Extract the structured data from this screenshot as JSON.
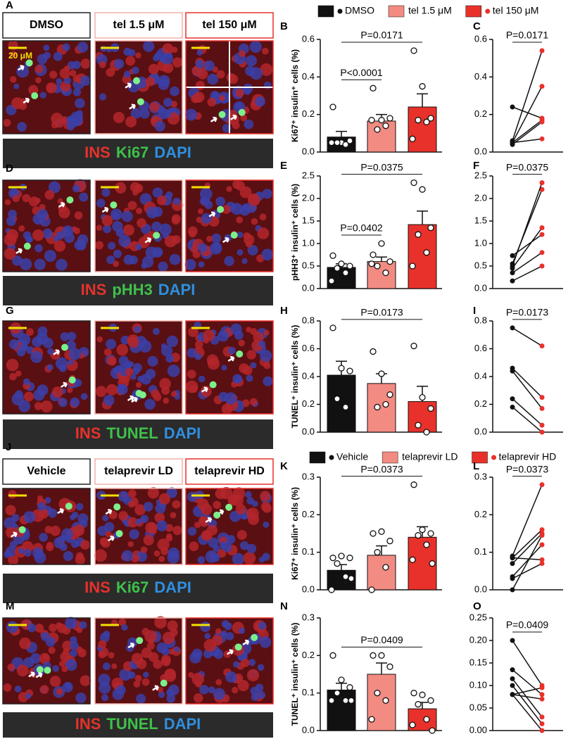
{
  "image_rows": [
    {
      "letter": "A",
      "headers": [
        "DMSO",
        "tel 1.5 μM",
        "tel 150 μM"
      ],
      "scale_label": "20 μM",
      "stains": [
        {
          "text": "INS",
          "color": "#e8312a"
        },
        {
          "text": "Ki67",
          "color": "#3fc14a"
        },
        {
          "text": "DAPI",
          "color": "#2f8fe0"
        }
      ]
    },
    {
      "letter": "D",
      "stains": [
        {
          "text": "INS",
          "color": "#e8312a"
        },
        {
          "text": "pHH3",
          "color": "#3fc14a"
        },
        {
          "text": "DAPI",
          "color": "#2f8fe0"
        }
      ]
    },
    {
      "letter": "G",
      "stains": [
        {
          "text": "INS",
          "color": "#e8312a"
        },
        {
          "text": "TUNEL",
          "color": "#3fc14a"
        },
        {
          "text": "DAPI",
          "color": "#2f8fe0"
        }
      ]
    },
    {
      "letter": "J",
      "headers": [
        "Vehicle",
        "telaprevir LD",
        "telaprevir HD"
      ],
      "stains": [
        {
          "text": "INS",
          "color": "#e8312a"
        },
        {
          "text": "Ki67",
          "color": "#3fc14a"
        },
        {
          "text": "DAPI",
          "color": "#2f8fe0"
        }
      ]
    },
    {
      "letter": "M",
      "stains": [
        {
          "text": "INS",
          "color": "#e8312a"
        },
        {
          "text": "TUNEL",
          "color": "#3fc14a"
        },
        {
          "text": "DAPI",
          "color": "#2f8fe0"
        }
      ]
    }
  ],
  "legends": [
    {
      "entries": [
        {
          "name": "DMSO",
          "color": "#111111",
          "dot": "#111111"
        },
        {
          "name": "tel 1.5 μM",
          "color": "#f28b82"
        },
        {
          "name": "tel 150 μM",
          "color": "#e8312a",
          "dot": "#e8312a"
        }
      ]
    },
    {
      "entries": [
        {
          "name": "Vehicle",
          "color": "#111111",
          "dot": "#111111"
        },
        {
          "name": "telaprevir LD",
          "color": "#f28b82"
        },
        {
          "name": "telaprevir HD",
          "color": "#e8312a",
          "dot": "#e8312a"
        }
      ]
    }
  ],
  "chart_data": [
    {
      "type": "bar",
      "letter": "B",
      "ylabel": "Ki67⁺ insulin⁺ cells (%)",
      "ylim": [
        0,
        0.6
      ],
      "yticks": [
        {
          "value": 0,
          "label": "0.0"
        },
        0.2,
        0.4,
        0.6
      ],
      "series": [
        {
          "color": "#111111",
          "mean": 0.08,
          "sem": 0.03,
          "points": [
            0.24,
            0.05,
            0.06,
            0.05,
            0.04,
            0.05
          ]
        },
        {
          "color": "#f28b82",
          "mean": 0.165,
          "sem": 0.035,
          "points": [
            0.34,
            0.17,
            0.18,
            0.12,
            0.14,
            0.17
          ]
        },
        {
          "color": "#e8312a",
          "mean": 0.24,
          "sem": 0.07,
          "points": [
            0.54,
            0.35,
            0.18,
            0.17,
            0.16,
            0.07
          ]
        }
      ],
      "brackets": [
        {
          "label": "P<0.0001",
          "groups": [
            0,
            1
          ]
        },
        {
          "label": "P=0.0171",
          "groups": [
            0,
            2
          ]
        }
      ]
    },
    {
      "type": "paired",
      "letter": "C",
      "ylim": [
        0,
        0.6
      ],
      "yticks": [
        {
          "value": 0,
          "label": "0.0"
        },
        0.2,
        0.4,
        0.6
      ],
      "colors": [
        "#111111",
        "#e8312a"
      ],
      "bracket": "P=0.0171",
      "pairs": [
        [
          0.24,
          0.18
        ],
        [
          0.06,
          0.54
        ],
        [
          0.05,
          0.35
        ],
        [
          0.05,
          0.17
        ],
        [
          0.04,
          0.16
        ],
        [
          0.05,
          0.07
        ]
      ]
    },
    {
      "type": "bar",
      "letter": "E",
      "ylabel": "pHH3⁺ insulin⁺ cells (%)",
      "ylim": [
        0,
        2.5
      ],
      "yticks": [
        {
          "value": 0,
          "label": "0.0"
        },
        0.5,
        {
          "value": 1,
          "label": "1.0"
        },
        1.5,
        {
          "value": 2,
          "label": "2.0"
        },
        2.5
      ],
      "series": [
        {
          "color": "#111111",
          "mean": 0.47,
          "sem": 0.08,
          "points": [
            0.73,
            0.55,
            0.5,
            0.45,
            0.35,
            0.17
          ]
        },
        {
          "color": "#f28b82",
          "mean": 0.6,
          "sem": 0.1,
          "points": [
            0.75,
            1.0,
            0.6,
            0.5,
            0.35,
            0.55
          ]
        },
        {
          "color": "#e8312a",
          "mean": 1.42,
          "sem": 0.3,
          "points": [
            2.35,
            2.2,
            1.35,
            1.2,
            0.8,
            0.5
          ]
        }
      ],
      "brackets": [
        {
          "label": "P=0.0402",
          "groups": [
            0,
            1
          ]
        },
        {
          "label": "P=0.0375",
          "groups": [
            0,
            2
          ]
        }
      ]
    },
    {
      "type": "paired",
      "letter": "F",
      "ylim": [
        0,
        2.5
      ],
      "yticks": [
        {
          "value": 0,
          "label": "0.0"
        },
        0.5,
        {
          "value": 1,
          "label": "1.0"
        },
        1.5,
        {
          "value": 2,
          "label": "2.0"
        },
        2.5
      ],
      "colors": [
        "#111111",
        "#e8312a"
      ],
      "bracket": "P=0.0375",
      "pairs": [
        [
          0.73,
          1.2
        ],
        [
          0.55,
          2.2
        ],
        [
          0.5,
          2.35
        ],
        [
          0.45,
          1.35
        ],
        [
          0.35,
          0.8
        ],
        [
          0.17,
          0.5
        ]
      ]
    },
    {
      "type": "bar",
      "letter": "H",
      "ylabel": "TUNEL⁺ insulin⁺ cells (%)",
      "ylim": [
        0,
        0.8
      ],
      "yticks": [
        {
          "value": 0,
          "label": "0.0"
        },
        0.2,
        0.4,
        0.6,
        0.8
      ],
      "series": [
        {
          "color": "#111111",
          "mean": 0.41,
          "sem": 0.1,
          "points": [
            0.75,
            0.46,
            0.44,
            0.24,
            0.18
          ]
        },
        {
          "color": "#f28b82",
          "mean": 0.35,
          "sem": 0.07,
          "points": [
            0.58,
            0.42,
            0.27,
            0.18,
            0.2
          ]
        },
        {
          "color": "#e8312a",
          "mean": 0.22,
          "sem": 0.11,
          "points": [
            0.62,
            0.25,
            0.17,
            0.05,
            0
          ]
        }
      ],
      "brackets": [
        {
          "label": "P=0.0173",
          "groups": [
            0,
            2
          ]
        }
      ]
    },
    {
      "type": "paired",
      "letter": "I",
      "ylim": [
        0,
        0.8
      ],
      "yticks": [
        {
          "value": 0,
          "label": "0.0"
        },
        0.2,
        0.4,
        0.6,
        0.8
      ],
      "colors": [
        "#111111",
        "#e8312a"
      ],
      "bracket": "P=0.0173",
      "pairs": [
        [
          0.75,
          0.62
        ],
        [
          0.46,
          0.25
        ],
        [
          0.44,
          0.17
        ],
        [
          0.24,
          0.05
        ],
        [
          0.18,
          0
        ]
      ]
    },
    {
      "type": "bar",
      "letter": "K",
      "ylabel": "Ki67⁺ insulin⁺ cells (%)",
      "ylim": [
        0,
        0.3
      ],
      "yticks": [
        {
          "value": 0,
          "label": "0.0"
        },
        0.1,
        0.2,
        0.3
      ],
      "series": [
        {
          "color": "#111111",
          "mean": 0.052,
          "sem": 0.015,
          "points": [
            0.085,
            0.09,
            0.085,
            0.07,
            0.035,
            0,
            0.03
          ]
        },
        {
          "color": "#f28b82",
          "mean": 0.092,
          "sem": 0.025,
          "points": [
            0.15,
            0.155,
            0.13,
            0.1,
            0.06,
            0
          ]
        },
        {
          "color": "#e8312a",
          "mean": 0.14,
          "sem": 0.028,
          "points": [
            0.28,
            0.16,
            0.15,
            0.145,
            0.12,
            0.08,
            0.07
          ]
        }
      ],
      "brackets": [
        {
          "label": "P=0.0373",
          "groups": [
            0,
            2
          ]
        }
      ]
    },
    {
      "type": "paired",
      "letter": "L",
      "ylim": [
        0,
        0.3
      ],
      "yticks": [
        {
          "value": 0,
          "label": "0.0"
        },
        0.1,
        0.2,
        0.3
      ],
      "colors": [
        "#111111",
        "#e8312a"
      ],
      "bracket": "P=0.0373",
      "pairs": [
        [
          0.09,
          0.28
        ],
        [
          0.085,
          0.16
        ],
        [
          0.085,
          0.08
        ],
        [
          0.07,
          0.15
        ],
        [
          0.035,
          0.12
        ],
        [
          0.03,
          0.07
        ],
        [
          0,
          0.145
        ]
      ]
    },
    {
      "type": "bar",
      "letter": "N",
      "ylabel": "TUNEL⁺ insulin⁺ cells (%)",
      "ylim": [
        0,
        0.3
      ],
      "yticks": [
        {
          "value": 0,
          "label": "0.0"
        },
        0.1,
        0.2,
        0.3
      ],
      "series": [
        {
          "color": "#111111",
          "mean": 0.108,
          "sem": 0.018,
          "points": [
            0.2,
            0.135,
            0.115,
            0.1,
            0.08,
            0.08,
            0.08
          ]
        },
        {
          "color": "#f28b82",
          "mean": 0.15,
          "sem": 0.03,
          "points": [
            0.2,
            0.2,
            0.17,
            0.1,
            0.08,
            0.03
          ]
        },
        {
          "color": "#e8312a",
          "mean": 0.058,
          "sem": 0.017,
          "points": [
            0.1,
            0.095,
            0.08,
            0.07,
            0.03,
            0.015,
            0
          ]
        }
      ],
      "brackets": [
        {
          "label": "P=0.0409",
          "groups": [
            0,
            2
          ]
        }
      ]
    },
    {
      "type": "paired",
      "letter": "O",
      "ylim": [
        0,
        0.25
      ],
      "yticks": [
        {
          "value": 0,
          "label": "0.00"
        },
        0.05,
        {
          "value": 0.1,
          "label": "0.10"
        },
        0.15,
        {
          "value": 0.2,
          "label": "0.20"
        },
        0.25
      ],
      "colors": [
        "#111111",
        "#e8312a"
      ],
      "bracket": "P=0.0409",
      "pairs": [
        [
          0.2,
          0.1
        ],
        [
          0.135,
          0.08
        ],
        [
          0.115,
          0.03
        ],
        [
          0.1,
          0.015
        ],
        [
          0.08,
          0.095
        ],
        [
          0.08,
          0.07
        ],
        [
          0.08,
          0
        ]
      ]
    }
  ]
}
